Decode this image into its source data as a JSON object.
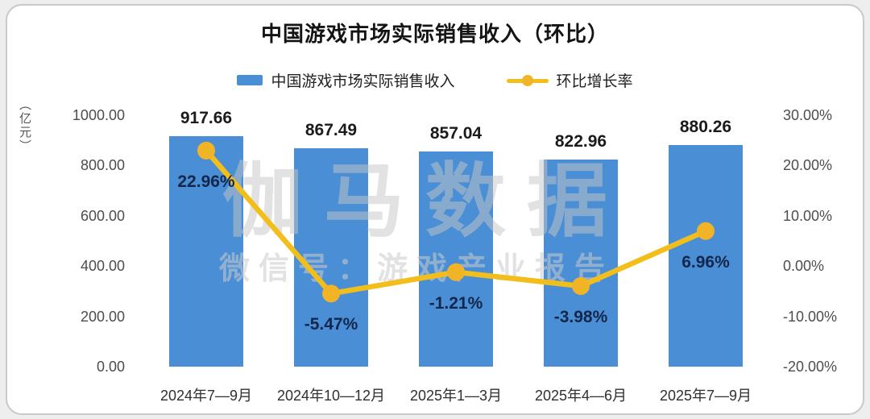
{
  "title": "中国游戏市场实际销售收入（环比）",
  "y_axis_unit": "（亿元）",
  "legend": {
    "bar_label": "中国游戏市场实际销售收入",
    "line_label": "环比增长率"
  },
  "watermark": {
    "line1": "伽马数据",
    "line2": "微信号：游戏产业报告"
  },
  "colors": {
    "bar": "#4A8FD6",
    "line": "#F2BE1B",
    "marker": "#F0B426",
    "pct_text": "#13264B"
  },
  "chart_data": {
    "type": "bar",
    "subtype": "bar-line combo, dual axis",
    "title": "中国游戏市场实际销售收入（环比）",
    "categories": [
      "2024年7—9月",
      "2024年10—12月",
      "2025年1—3月",
      "2025年4—6月",
      "2025年7—9月"
    ],
    "series": [
      {
        "name": "中国游戏市场实际销售收入",
        "type": "bar",
        "axis": "left",
        "unit": "亿元",
        "values": [
          917.66,
          867.49,
          857.04,
          822.96,
          880.26
        ],
        "labels": [
          "917.66",
          "867.49",
          "857.04",
          "822.96",
          "880.26"
        ]
      },
      {
        "name": "环比增长率",
        "type": "line",
        "axis": "right",
        "unit": "%",
        "values": [
          22.96,
          -5.47,
          -1.21,
          -3.98,
          6.96
        ],
        "labels": [
          "22.96%",
          "-5.47%",
          "-1.21%",
          "-3.98%",
          "6.96%"
        ]
      }
    ],
    "left_axis": {
      "label": "（亿元）",
      "min": 0,
      "max": 1000,
      "ticks": [
        "1000.00",
        "800.00",
        "600.00",
        "400.00",
        "200.00",
        "0.00"
      ]
    },
    "right_axis": {
      "min": -20,
      "max": 30,
      "ticks": [
        "30.00%",
        "20.00%",
        "10.00%",
        "0.00%",
        "-10.00%",
        "-20.00%"
      ]
    },
    "grid": false,
    "legend_position": "top-center"
  }
}
